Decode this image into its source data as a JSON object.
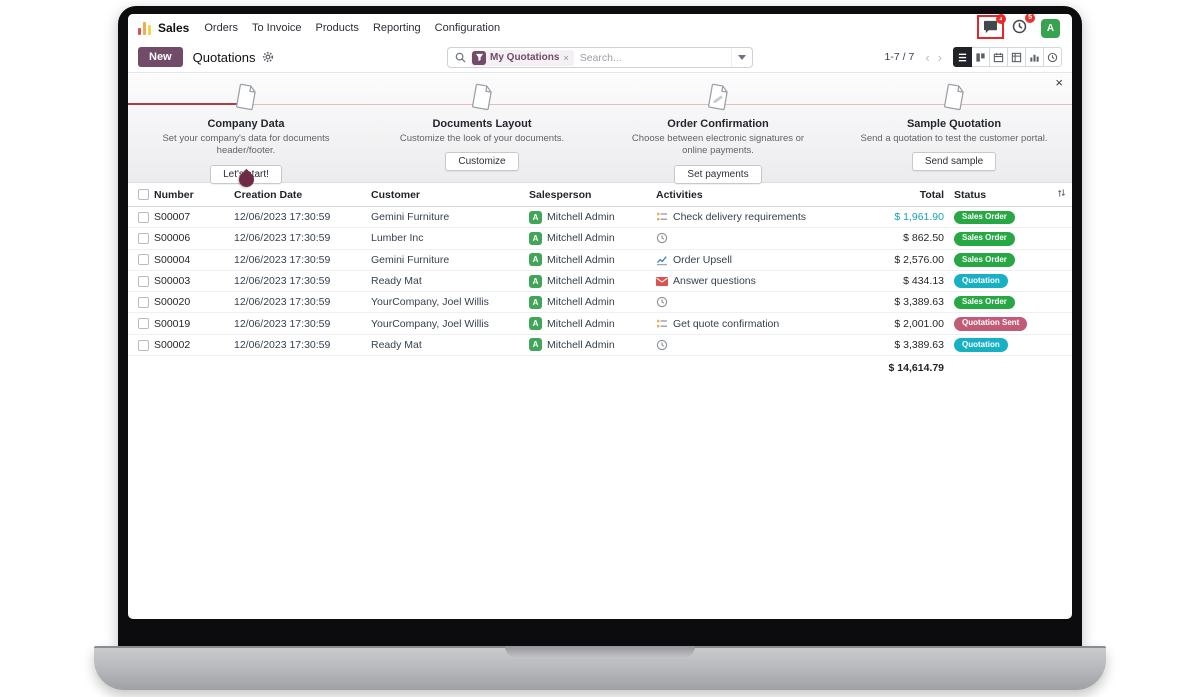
{
  "navbar": {
    "app_name": "Sales",
    "menu": [
      "Orders",
      "To Invoice",
      "Products",
      "Reporting",
      "Configuration"
    ],
    "messages_badge": "1",
    "activities_badge": "5",
    "avatar_letter": "A"
  },
  "controlbar": {
    "new_label": "New",
    "breadcrumb": "Quotations",
    "search": {
      "filter_tag": "My Quotations",
      "remove": "×",
      "placeholder": "Search..."
    },
    "pager": "1-7 / 7"
  },
  "banner": {
    "close": "×",
    "steps": [
      {
        "title": "Company Data",
        "desc": "Set your company's data for documents header/footer.",
        "button": "Let's start!"
      },
      {
        "title": "Documents Layout",
        "desc": "Customize the look of your documents.",
        "button": "Customize"
      },
      {
        "title": "Order Confirmation",
        "desc": "Choose between electronic signatures or online payments.",
        "button": "Set payments"
      },
      {
        "title": "Sample Quotation",
        "desc": "Send a quotation to test the customer portal.",
        "button": "Send sample"
      }
    ]
  },
  "table": {
    "columns": [
      "Number",
      "Creation Date",
      "Customer",
      "Salesperson",
      "Activities",
      "Total",
      "Status"
    ],
    "rows": [
      {
        "number": "S00007",
        "date": "12/06/2023 17:30:59",
        "customer": "Gemini Furniture",
        "salesperson": "Mitchell Admin",
        "avatar_letter": "A",
        "activity": {
          "icon": "clipboard",
          "label": "Check delivery requirements"
        },
        "total": "$ 1,961.90",
        "total_class": "teal",
        "status": "Sales Order",
        "status_class": "success"
      },
      {
        "number": "S00006",
        "date": "12/06/2023 17:30:59",
        "customer": "Lumber Inc",
        "salesperson": "Mitchell Admin",
        "avatar_letter": "A",
        "activity": {
          "icon": "clock",
          "label": ""
        },
        "total": "$ 862.50",
        "total_class": "",
        "status": "Sales Order",
        "status_class": "success"
      },
      {
        "number": "S00004",
        "date": "12/06/2023 17:30:59",
        "customer": "Gemini Furniture",
        "salesperson": "Mitchell Admin",
        "avatar_letter": "A",
        "activity": {
          "icon": "chart",
          "label": "Order Upsell"
        },
        "total": "$ 2,576.00",
        "total_class": "",
        "status": "Sales Order",
        "status_class": "success"
      },
      {
        "number": "S00003",
        "date": "12/06/2023 17:30:59",
        "customer": "Ready Mat",
        "salesperson": "Mitchell Admin",
        "avatar_letter": "A",
        "activity": {
          "icon": "envelope",
          "label": "Answer questions"
        },
        "total": "$ 434.13",
        "total_class": "",
        "status": "Quotation",
        "status_class": "info"
      },
      {
        "number": "S00020",
        "date": "12/06/2023 17:30:59",
        "customer": "YourCompany, Joel Willis",
        "salesperson": "Mitchell Admin",
        "avatar_letter": "A",
        "activity": {
          "icon": "clock",
          "label": ""
        },
        "total": "$ 3,389.63",
        "total_class": "",
        "status": "Sales Order",
        "status_class": "success"
      },
      {
        "number": "S00019",
        "date": "12/06/2023 17:30:59",
        "customer": "YourCompany, Joel Willis",
        "salesperson": "Mitchell Admin",
        "avatar_letter": "A",
        "activity": {
          "icon": "clipboard",
          "label": "Get quote confirmation"
        },
        "total": "$ 2,001.00",
        "total_class": "",
        "status": "Quotation Sent",
        "status_class": "sent"
      },
      {
        "number": "S00002",
        "date": "12/06/2023 17:30:59",
        "customer": "Ready Mat",
        "salesperson": "Mitchell Admin",
        "avatar_letter": "A",
        "activity": {
          "icon": "clock",
          "label": ""
        },
        "total": "$ 3,389.63",
        "total_class": "",
        "status": "Quotation",
        "status_class": "info"
      }
    ],
    "footer_total": "$ 14,614.79"
  },
  "colors": {
    "accent": "#714B67",
    "success": "#28a745",
    "info": "#17b0c4",
    "sent": "#c25b78",
    "total_highlight": "#17a2b8"
  }
}
